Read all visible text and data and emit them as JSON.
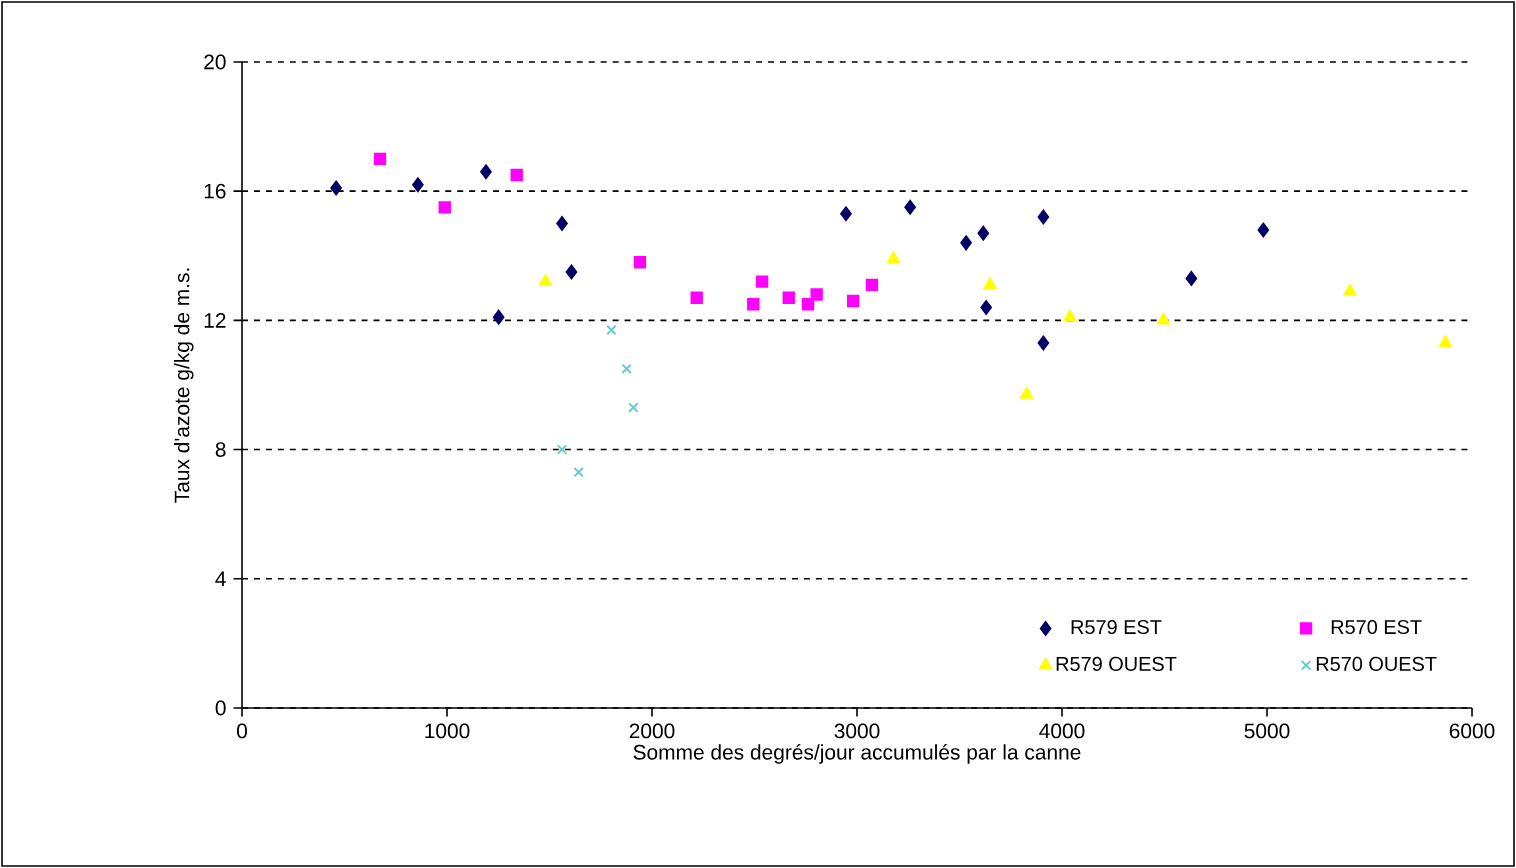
{
  "chart_data": {
    "type": "scatter",
    "xlabel": "Somme des degrés/jour accumulés par la canne",
    "ylabel": "Taux d'azote g/kg de m.s.",
    "xlim": [
      0,
      6000
    ],
    "xticks": [
      0,
      1000,
      2000,
      3000,
      4000,
      5000,
      6000
    ],
    "ylim": [
      0,
      20
    ],
    "yticks": [
      0,
      4,
      8,
      12,
      16,
      20
    ],
    "grid": "y",
    "legend": "bottom right",
    "series": [
      {
        "name": "R579 EST",
        "color": "#000066",
        "marker": "diamond",
        "x": [
          459,
          858,
          1190,
          1252,
          1561,
          1607,
          2946,
          3259,
          3532,
          3616,
          3630,
          3909,
          3909,
          4631,
          4982
        ],
        "values": [
          16.1,
          16.2,
          16.6,
          12.1,
          15.0,
          13.5,
          15.3,
          15.5,
          14.4,
          14.7,
          12.4,
          15.2,
          11.3,
          13.3,
          14.8
        ]
      },
      {
        "name": "R570 EST",
        "color": "#ff00ff",
        "marker": "square",
        "x": [
          673,
          989,
          1340,
          1941,
          2218,
          2494,
          2537,
          2667,
          2761,
          2803,
          2981,
          3073
        ],
        "values": [
          17.0,
          15.5,
          16.5,
          13.8,
          12.7,
          12.5,
          13.2,
          12.7,
          12.5,
          12.8,
          12.6,
          13.1
        ]
      },
      {
        "name": "R579 OUEST",
        "color": "#ffff00",
        "marker": "triangle",
        "x": [
          1480,
          3178,
          3649,
          3827,
          4039,
          4495,
          5405,
          5870
        ],
        "values": [
          13.2,
          13.9,
          13.1,
          9.7,
          12.1,
          12.0,
          12.9,
          11.3
        ]
      },
      {
        "name": "R570 OUEST",
        "color": "#66cccc",
        "marker": "cross",
        "x": [
          1561,
          1642,
          1802,
          1876,
          1909
        ],
        "values": [
          8.0,
          7.3,
          11.7,
          10.5,
          9.3
        ]
      }
    ]
  }
}
